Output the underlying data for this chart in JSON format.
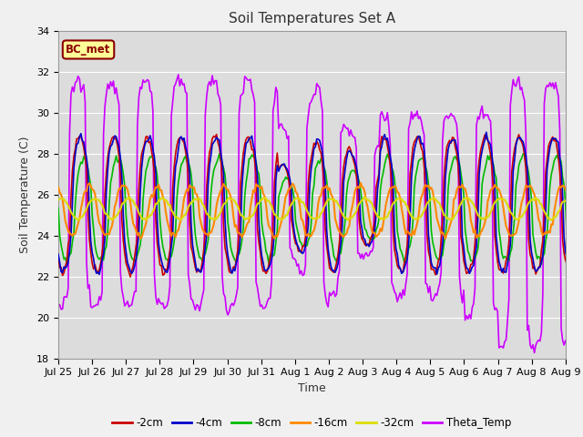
{
  "title": "Soil Temperatures Set A",
  "xlabel": "Time",
  "ylabel": "Soil Temperature (C)",
  "ylim": [
    18,
    34
  ],
  "yticks": [
    18,
    20,
    22,
    24,
    26,
    28,
    30,
    32,
    34
  ],
  "xtick_labels": [
    "Jul 25",
    "Jul 26",
    "Jul 27",
    "Jul 28",
    "Jul 29",
    "Jul 30",
    "Jul 31",
    "Aug 1",
    "Aug 2",
    "Aug 3",
    "Aug 4",
    "Aug 5",
    "Aug 6",
    "Aug 7",
    "Aug 8",
    "Aug 9"
  ],
  "legend_label": "BC_met",
  "series": {
    "-2cm": {
      "color": "#cc0000",
      "lw": 1.2
    },
    "-4cm": {
      "color": "#0000cc",
      "lw": 1.2
    },
    "-8cm": {
      "color": "#00bb00",
      "lw": 1.2
    },
    "-16cm": {
      "color": "#ff8800",
      "lw": 1.5
    },
    "-32cm": {
      "color": "#dddd00",
      "lw": 1.5
    },
    "Theta_Temp": {
      "color": "#cc00ff",
      "lw": 1.2
    }
  },
  "fig_bg": "#f0f0f0",
  "axes_bg": "#dcdcdc",
  "grid_color": "#ffffff",
  "title_fontsize": 11,
  "axis_fontsize": 9,
  "tick_fontsize": 8
}
